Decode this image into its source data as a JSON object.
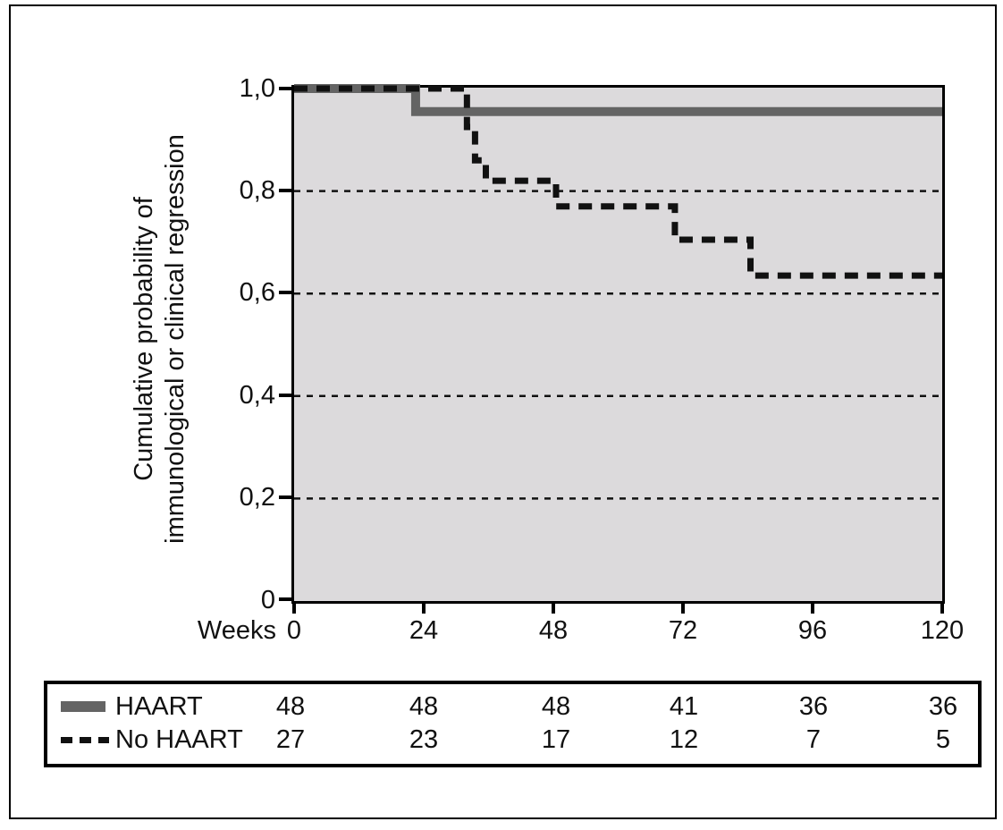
{
  "figure": {
    "y_axis": {
      "title_line1": "Cumulative probability of",
      "title_line2": "immunological or clinical regression",
      "tick_labels": [
        "1,0",
        "0,8",
        "0,6",
        "0,4",
        "0,2",
        "0"
      ]
    },
    "x_axis": {
      "label": "Weeks",
      "tick_labels": [
        "0",
        "24",
        "48",
        "72",
        "96",
        "120"
      ]
    }
  },
  "chart_data": {
    "type": "line",
    "subtype": "kaplan-meier-step",
    "title": "",
    "xlabel": "Weeks",
    "ylabel": "Cumulative probability of immunological or clinical regression",
    "xlim": [
      0,
      120
    ],
    "ylim": [
      0,
      1.0
    ],
    "x_ticks": [
      0,
      24,
      48,
      72,
      96,
      120
    ],
    "y_ticks": [
      1.0,
      0.8,
      0.6,
      0.4,
      0.2,
      0
    ],
    "grid_y_values": [
      0.8,
      0.6,
      0.4,
      0.2
    ],
    "grid_style": "dotted",
    "plot_background": "#dcdadc",
    "series": [
      {
        "name": "HAART",
        "style": "solid",
        "color": "#646464",
        "stroke_width": 10,
        "points": [
          [
            0,
            1.0
          ],
          [
            22.5,
            1.0
          ],
          [
            22.5,
            0.955
          ],
          [
            120,
            0.955
          ]
        ]
      },
      {
        "name": "No HAART",
        "style": "dashed",
        "color": "#111111",
        "stroke_width": 7,
        "points": [
          [
            0,
            1.0
          ],
          [
            32,
            1.0
          ],
          [
            32,
            0.925
          ],
          [
            33.5,
            0.925
          ],
          [
            33.5,
            0.86
          ],
          [
            35.5,
            0.86
          ],
          [
            35.5,
            0.82
          ],
          [
            48.5,
            0.82
          ],
          [
            48.5,
            0.77
          ],
          [
            70.5,
            0.77
          ],
          [
            70.5,
            0.705
          ],
          [
            84.5,
            0.705
          ],
          [
            84.5,
            0.635
          ],
          [
            120,
            0.635
          ]
        ]
      }
    ],
    "legend_position": "bottom-table"
  },
  "risk_table": {
    "rows": [
      {
        "label": "HAART",
        "swatch": "solid-gray-line",
        "values": [
          "48",
          "48",
          "48",
          "41",
          "36",
          "36"
        ]
      },
      {
        "label": "No HAART",
        "swatch": "dashed-black-line",
        "values": [
          "27",
          "23",
          "17",
          "12",
          "7",
          "5"
        ]
      }
    ]
  },
  "colors": {
    "haart_line": "#646464",
    "no_haart_line": "#111111",
    "plot_background": "#dcdadc",
    "axis": "#000000"
  }
}
